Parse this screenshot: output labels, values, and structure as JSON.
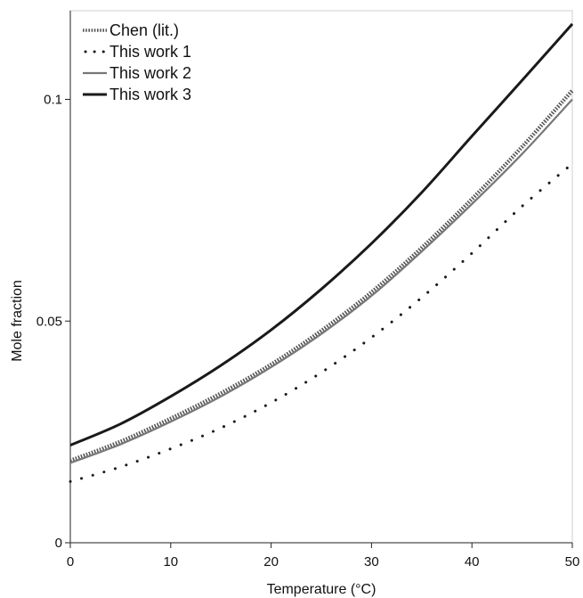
{
  "chart_data": {
    "type": "line",
    "title": "",
    "xlabel": "Temperature (°C)",
    "ylabel": "Mole fraction",
    "xlim": [
      0,
      50
    ],
    "ylim": [
      0,
      0.12
    ],
    "xticks": [
      0,
      10,
      20,
      30,
      40,
      50
    ],
    "xtick_labels": [
      "0",
      "10",
      "20",
      "30",
      "40",
      "50"
    ],
    "yticks": [
      0,
      0.05,
      0.1
    ],
    "ytick_labels": [
      "0",
      "0.05",
      "0.1"
    ],
    "grid": false,
    "legend": "top-left",
    "x": [
      0,
      5,
      10,
      15,
      20,
      25,
      30,
      35,
      40,
      45,
      50
    ],
    "series": [
      {
        "name": "Chen (lit.)",
        "style": "dense-dotted",
        "color": "#555555",
        "values": [
          0.0185,
          0.0228,
          0.028,
          0.0337,
          0.0402,
          0.0478,
          0.0565,
          0.0665,
          0.0775,
          0.0893,
          0.102
        ]
      },
      {
        "name": "This work 1",
        "style": "sparse-dotted",
        "color": "#1a1a1a",
        "values": [
          0.0138,
          0.0171,
          0.0212,
          0.0259,
          0.0316,
          0.0384,
          0.0463,
          0.0553,
          0.0653,
          0.0759,
          0.0855
        ]
      },
      {
        "name": "This work 2",
        "style": "solid-thin",
        "color": "#777777",
        "values": [
          0.018,
          0.0222,
          0.0273,
          0.033,
          0.0396,
          0.0471,
          0.0557,
          0.0657,
          0.0764,
          0.0877,
          0.1
        ]
      },
      {
        "name": "This work 3",
        "style": "solid-thick",
        "color": "#1a1a1a",
        "values": [
          0.022,
          0.0268,
          0.033,
          0.04,
          0.048,
          0.0572,
          0.0675,
          0.079,
          0.0917,
          0.1043,
          0.117
        ]
      }
    ]
  }
}
